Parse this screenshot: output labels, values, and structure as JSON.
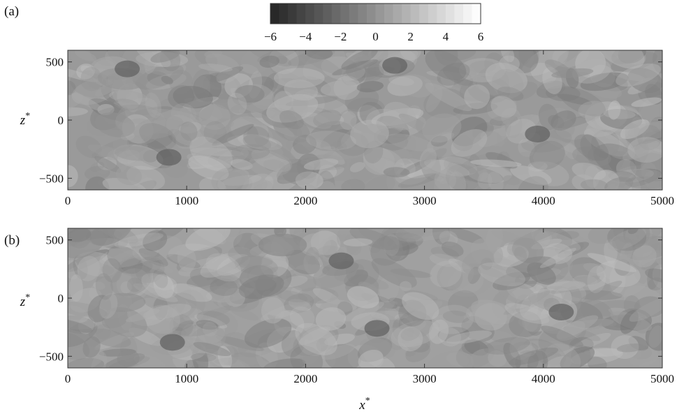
{
  "chart_data": {
    "type": "heatmap",
    "colorbar": {
      "range": [
        -6,
        6
      ],
      "ticks": [
        -6,
        -4,
        -2,
        0,
        2,
        4,
        6
      ],
      "tick_labels": [
        "−6",
        "−4",
        "−2",
        "0",
        "2",
        "4",
        "6"
      ],
      "levels": 24,
      "colormap": "grayscale (dark = negative, light = positive)"
    },
    "panels": [
      {
        "label": "(a)",
        "xlabel": "",
        "ylabel": "z*",
        "xlim": [
          0,
          5000
        ],
        "ylim": [
          -600,
          600
        ],
        "xticks": [
          0,
          1000,
          2000,
          3000,
          4000,
          5000
        ],
        "xtick_labels": [
          "0",
          "1000",
          "2000",
          "3000",
          "4000",
          "5000"
        ],
        "yticks": [
          500,
          0,
          -500
        ],
        "ytick_labels": [
          "500",
          "0",
          "−500"
        ],
        "field_mean": 0.0,
        "notable_dark_patches": [
          [
            3950,
            -120
          ],
          [
            850,
            -320
          ],
          [
            500,
            440
          ],
          [
            2750,
            470
          ]
        ]
      },
      {
        "label": "(b)",
        "xlabel": "x*",
        "ylabel": "z*",
        "xlim": [
          0,
          5000
        ],
        "ylim": [
          -600,
          600
        ],
        "xticks": [
          0,
          1000,
          2000,
          3000,
          4000,
          5000
        ],
        "xtick_labels": [
          "0",
          "1000",
          "2000",
          "3000",
          "4000",
          "5000"
        ],
        "yticks": [
          500,
          0,
          -500
        ],
        "ytick_labels": [
          "500",
          "0",
          "−500"
        ],
        "field_mean": 0.0,
        "notable_dark_patches": [
          [
            880,
            -380
          ],
          [
            2300,
            320
          ],
          [
            2600,
            -260
          ],
          [
            4150,
            -120
          ]
        ]
      }
    ]
  }
}
